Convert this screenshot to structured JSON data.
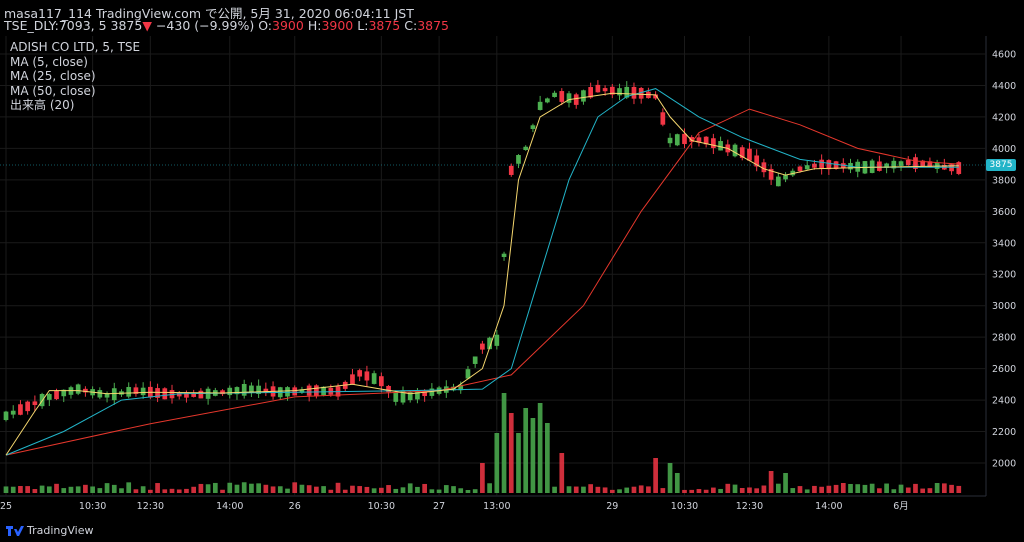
{
  "header": {
    "line1": "masa117_114 TradingView.com で公開, 5月 31, 2020 06:04:11 JST",
    "symbol": "TSE_DLY:7093, 5",
    "last": "3875",
    "change_arrow": "▼",
    "change": "−430 (−9.99%)",
    "o_label": "O:",
    "o_val": "3900",
    "h_label": "H:",
    "h_val": "3900",
    "l_label": "L:",
    "l_val": "3875",
    "c_label": "C:",
    "c_val": "3875"
  },
  "legend": {
    "title": "ADISH CO LTD, 5, TSE",
    "ma5": "MA (5, close)",
    "ma25": "MA (25, close)",
    "ma50": "MA (50, close)",
    "volume": "出来高 (20)"
  },
  "price_tag": "3875",
  "footer": {
    "brand": "TradingView"
  },
  "colors": {
    "up": "#4caf50",
    "down": "#f23645",
    "ma5": "#f5d76e",
    "ma25": "#22b4c8",
    "ma50": "#e5372c",
    "grid": "#1a1a1a",
    "text": "#d1d4dc"
  },
  "chart_data": {
    "type": "candlestick",
    "y_axis": {
      "ticks": [
        4600,
        4400,
        4200,
        4000,
        3800,
        3600,
        3400,
        3200,
        3000,
        2800,
        2600,
        2400,
        2200,
        2000
      ],
      "range": [
        1800,
        4700
      ],
      "last_price": 3875
    },
    "x_axis": {
      "labels": [
        "25",
        "10:30",
        "12:30",
        "14:00",
        "26",
        "10:30",
        "27",
        "13:00",
        "29",
        "10:30",
        "12:30",
        "14:00",
        "6月"
      ]
    },
    "price_path": [
      [
        0,
        2300
      ],
      [
        6,
        2420
      ],
      [
        10,
        2470
      ],
      [
        14,
        2430
      ],
      [
        18,
        2460
      ],
      [
        22,
        2440
      ],
      [
        26,
        2430
      ],
      [
        30,
        2450
      ],
      [
        34,
        2470
      ],
      [
        38,
        2450
      ],
      [
        42,
        2460
      ],
      [
        46,
        2455
      ],
      [
        49,
        2570
      ],
      [
        52,
        2520
      ],
      [
        54,
        2420
      ],
      [
        57,
        2430
      ],
      [
        60,
        2460
      ],
      [
        63,
        2480
      ],
      [
        66,
        2740
      ],
      [
        68,
        2780
      ],
      [
        70,
        3860
      ],
      [
        72,
        4000
      ],
      [
        74,
        4270
      ],
      [
        76,
        4340
      ],
      [
        79,
        4310
      ],
      [
        82,
        4380
      ],
      [
        85,
        4360
      ],
      [
        88,
        4350
      ],
      [
        90,
        4330
      ],
      [
        92,
        4050
      ],
      [
        94,
        4060
      ],
      [
        97,
        4050
      ],
      [
        100,
        4000
      ],
      [
        103,
        3960
      ],
      [
        105,
        3880
      ],
      [
        107,
        3790
      ],
      [
        110,
        3870
      ],
      [
        113,
        3900
      ],
      [
        116,
        3890
      ],
      [
        119,
        3880
      ],
      [
        122,
        3890
      ],
      [
        125,
        3910
      ],
      [
        128,
        3900
      ],
      [
        130,
        3880
      ],
      [
        132,
        3875
      ]
    ],
    "ma5_path": [
      [
        0,
        2050
      ],
      [
        4,
        2330
      ],
      [
        6,
        2460
      ],
      [
        10,
        2460
      ],
      [
        14,
        2440
      ],
      [
        20,
        2450
      ],
      [
        30,
        2445
      ],
      [
        40,
        2460
      ],
      [
        48,
        2500
      ],
      [
        52,
        2470
      ],
      [
        56,
        2440
      ],
      [
        62,
        2470
      ],
      [
        66,
        2600
      ],
      [
        69,
        3000
      ],
      [
        71,
        3800
      ],
      [
        74,
        4200
      ],
      [
        78,
        4310
      ],
      [
        84,
        4350
      ],
      [
        90,
        4340
      ],
      [
        92,
        4200
      ],
      [
        95,
        4050
      ],
      [
        100,
        4000
      ],
      [
        105,
        3870
      ],
      [
        108,
        3830
      ],
      [
        112,
        3870
      ],
      [
        120,
        3880
      ],
      [
        132,
        3890
      ]
    ],
    "ma25_path": [
      [
        0,
        2050
      ],
      [
        8,
        2200
      ],
      [
        16,
        2400
      ],
      [
        24,
        2440
      ],
      [
        40,
        2450
      ],
      [
        56,
        2460
      ],
      [
        66,
        2470
      ],
      [
        70,
        2600
      ],
      [
        74,
        3200
      ],
      [
        78,
        3800
      ],
      [
        82,
        4200
      ],
      [
        86,
        4330
      ],
      [
        90,
        4380
      ],
      [
        96,
        4200
      ],
      [
        102,
        4070
      ],
      [
        110,
        3930
      ],
      [
        118,
        3880
      ],
      [
        132,
        3880
      ]
    ],
    "ma50_path": [
      [
        0,
        2050
      ],
      [
        20,
        2250
      ],
      [
        40,
        2420
      ],
      [
        60,
        2460
      ],
      [
        70,
        2560
      ],
      [
        80,
        3000
      ],
      [
        88,
        3600
      ],
      [
        96,
        4100
      ],
      [
        103,
        4250
      ],
      [
        110,
        4150
      ],
      [
        118,
        4000
      ],
      [
        126,
        3920
      ],
      [
        132,
        3900
      ]
    ],
    "volume_spikes": [
      [
        66,
        30
      ],
      [
        68,
        60
      ],
      [
        69,
        100
      ],
      [
        70,
        80
      ],
      [
        71,
        60
      ],
      [
        72,
        85
      ],
      [
        73,
        75
      ],
      [
        74,
        90
      ],
      [
        75,
        70
      ],
      [
        77,
        40
      ],
      [
        90,
        35
      ],
      [
        92,
        30
      ],
      [
        93,
        20
      ],
      [
        106,
        22
      ],
      [
        108,
        20
      ],
      [
        116,
        10
      ]
    ]
  }
}
